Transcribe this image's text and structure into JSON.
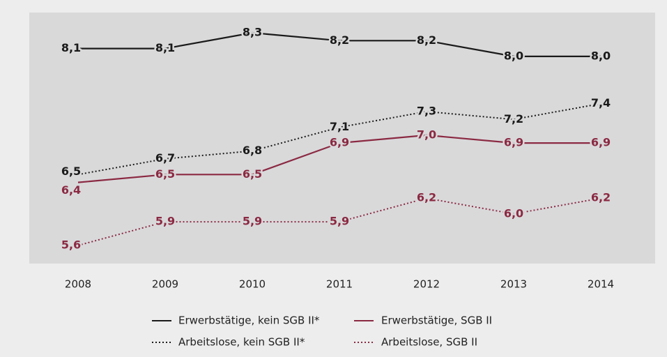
{
  "chart_data": {
    "type": "line",
    "categories": [
      "2008",
      "2009",
      "2010",
      "2011",
      "2012",
      "2013",
      "2014"
    ],
    "series": [
      {
        "name": "Erwerbstätige, kein SGB II*",
        "color": "#1a1a1a",
        "dash": "solid",
        "values": [
          8.1,
          8.1,
          8.3,
          8.2,
          8.2,
          8.0,
          8.0
        ],
        "value_labels": [
          "8,1",
          "8,1",
          "8,3",
          "8,2",
          "8,2",
          "8,0",
          "8,0"
        ]
      },
      {
        "name": "Erwerbstätige, SGB II",
        "color": "#8b2942",
        "dash": "solid",
        "values": [
          6.4,
          6.5,
          6.5,
          6.9,
          7.0,
          6.9,
          6.9
        ],
        "value_labels": [
          "6,4",
          "6,5",
          "6,5",
          "6,9",
          "7,0",
          "6,9",
          "6,9"
        ]
      },
      {
        "name": "Arbeitslose, kein SGB II*",
        "color": "#1a1a1a",
        "dash": "dotted",
        "values": [
          6.5,
          6.7,
          6.8,
          7.1,
          7.3,
          7.2,
          7.4
        ],
        "value_labels": [
          "6,5",
          "6,7",
          "6,8",
          "7,1",
          "7,3",
          "7,2",
          "7,4"
        ]
      },
      {
        "name": "Arbeitslose, SGB II",
        "color": "#8b2942",
        "dash": "dotted",
        "values": [
          5.6,
          5.9,
          5.9,
          5.9,
          6.2,
          6.0,
          6.2
        ],
        "value_labels": [
          "5,6",
          "5,9",
          "5,9",
          "5,9",
          "6,2",
          "6,0",
          "6,2"
        ]
      }
    ]
  }
}
